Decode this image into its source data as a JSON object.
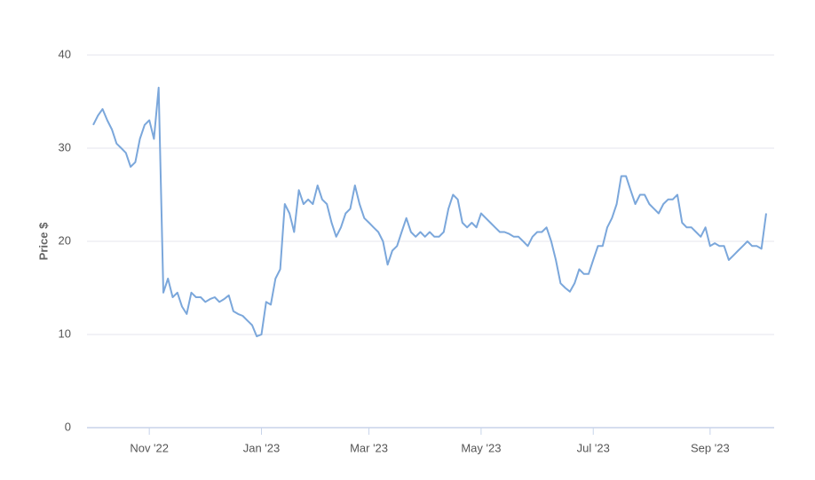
{
  "chart_data": {
    "type": "line",
    "y_label": "Price $",
    "categories": [
      null,
      null,
      null,
      null,
      null,
      null,
      null,
      null,
      null,
      null,
      null,
      null,
      "Nov '22",
      null,
      null,
      null,
      null,
      null,
      null,
      null,
      null,
      null,
      null,
      null,
      null,
      null,
      null,
      null,
      null,
      null,
      null,
      null,
      null,
      null,
      null,
      null,
      "Jan '23",
      null,
      null,
      null,
      null,
      null,
      null,
      null,
      null,
      null,
      null,
      null,
      null,
      null,
      null,
      null,
      null,
      null,
      null,
      null,
      null,
      null,
      null,
      "Mar '23",
      null,
      null,
      null,
      null,
      null,
      null,
      null,
      null,
      null,
      null,
      null,
      null,
      null,
      null,
      null,
      null,
      null,
      null,
      null,
      null,
      null,
      null,
      null,
      "May '23",
      null,
      null,
      null,
      null,
      null,
      null,
      null,
      null,
      null,
      null,
      null,
      null,
      null,
      null,
      null,
      null,
      null,
      null,
      null,
      null,
      null,
      null,
      null,
      "Jul '23",
      null,
      null,
      null,
      null,
      null,
      null,
      null,
      null,
      null,
      null,
      null,
      null,
      null,
      null,
      null,
      null,
      null,
      null,
      null,
      null,
      null,
      null,
      null,
      null,
      "Sep '23",
      null,
      null,
      null,
      null,
      null,
      null,
      null,
      null,
      null,
      null,
      null,
      null
    ],
    "series": [
      {
        "color": "#7ba7db",
        "values": [
          32.5,
          33.5,
          34.2,
          33,
          32,
          30.5,
          30,
          29.5,
          28,
          28.5,
          31,
          32.5,
          33,
          31,
          36.5,
          14.5,
          16,
          14,
          14.5,
          13,
          12.2,
          14.5,
          14,
          14,
          13.5,
          13.8,
          14,
          13.5,
          13.8,
          14.2,
          12.5,
          12.2,
          12,
          11.5,
          11,
          9.8,
          10,
          13.5,
          13.2,
          16,
          17,
          24,
          23,
          21,
          25.5,
          24,
          24.5,
          24,
          26,
          24.5,
          24,
          22,
          20.5,
          21.5,
          23,
          23.5,
          26,
          24,
          22.5,
          22,
          21.5,
          21,
          20,
          17.5,
          19,
          19.5,
          21,
          22.5,
          21,
          20.5,
          21,
          20.5,
          21,
          20.5,
          20.5,
          21,
          23.5,
          25,
          24.5,
          22,
          21.5,
          22,
          21.5,
          23,
          22.5,
          22,
          21.5,
          21,
          21,
          20.8,
          20.5,
          20.5,
          20,
          19.5,
          20.5,
          21,
          21,
          21.5,
          20,
          18,
          15.5,
          15,
          14.6,
          15.5,
          17,
          16.5,
          16.5,
          18,
          19.5,
          19.5,
          21.5,
          22.5,
          24,
          27,
          27,
          25.5,
          24,
          25,
          25,
          24,
          23.5,
          23,
          24,
          24.5,
          24.5,
          25,
          22,
          21.5,
          21.5,
          21,
          20.5,
          21.5,
          19.5,
          19.8,
          19.5,
          19.5,
          18,
          18.5,
          19,
          19.5,
          20,
          19.5,
          19.5,
          19.2,
          23
        ]
      }
    ],
    "ylim": [
      0,
      40
    ],
    "yticks": [
      0,
      10,
      20,
      30,
      40
    ],
    "grid": true
  }
}
